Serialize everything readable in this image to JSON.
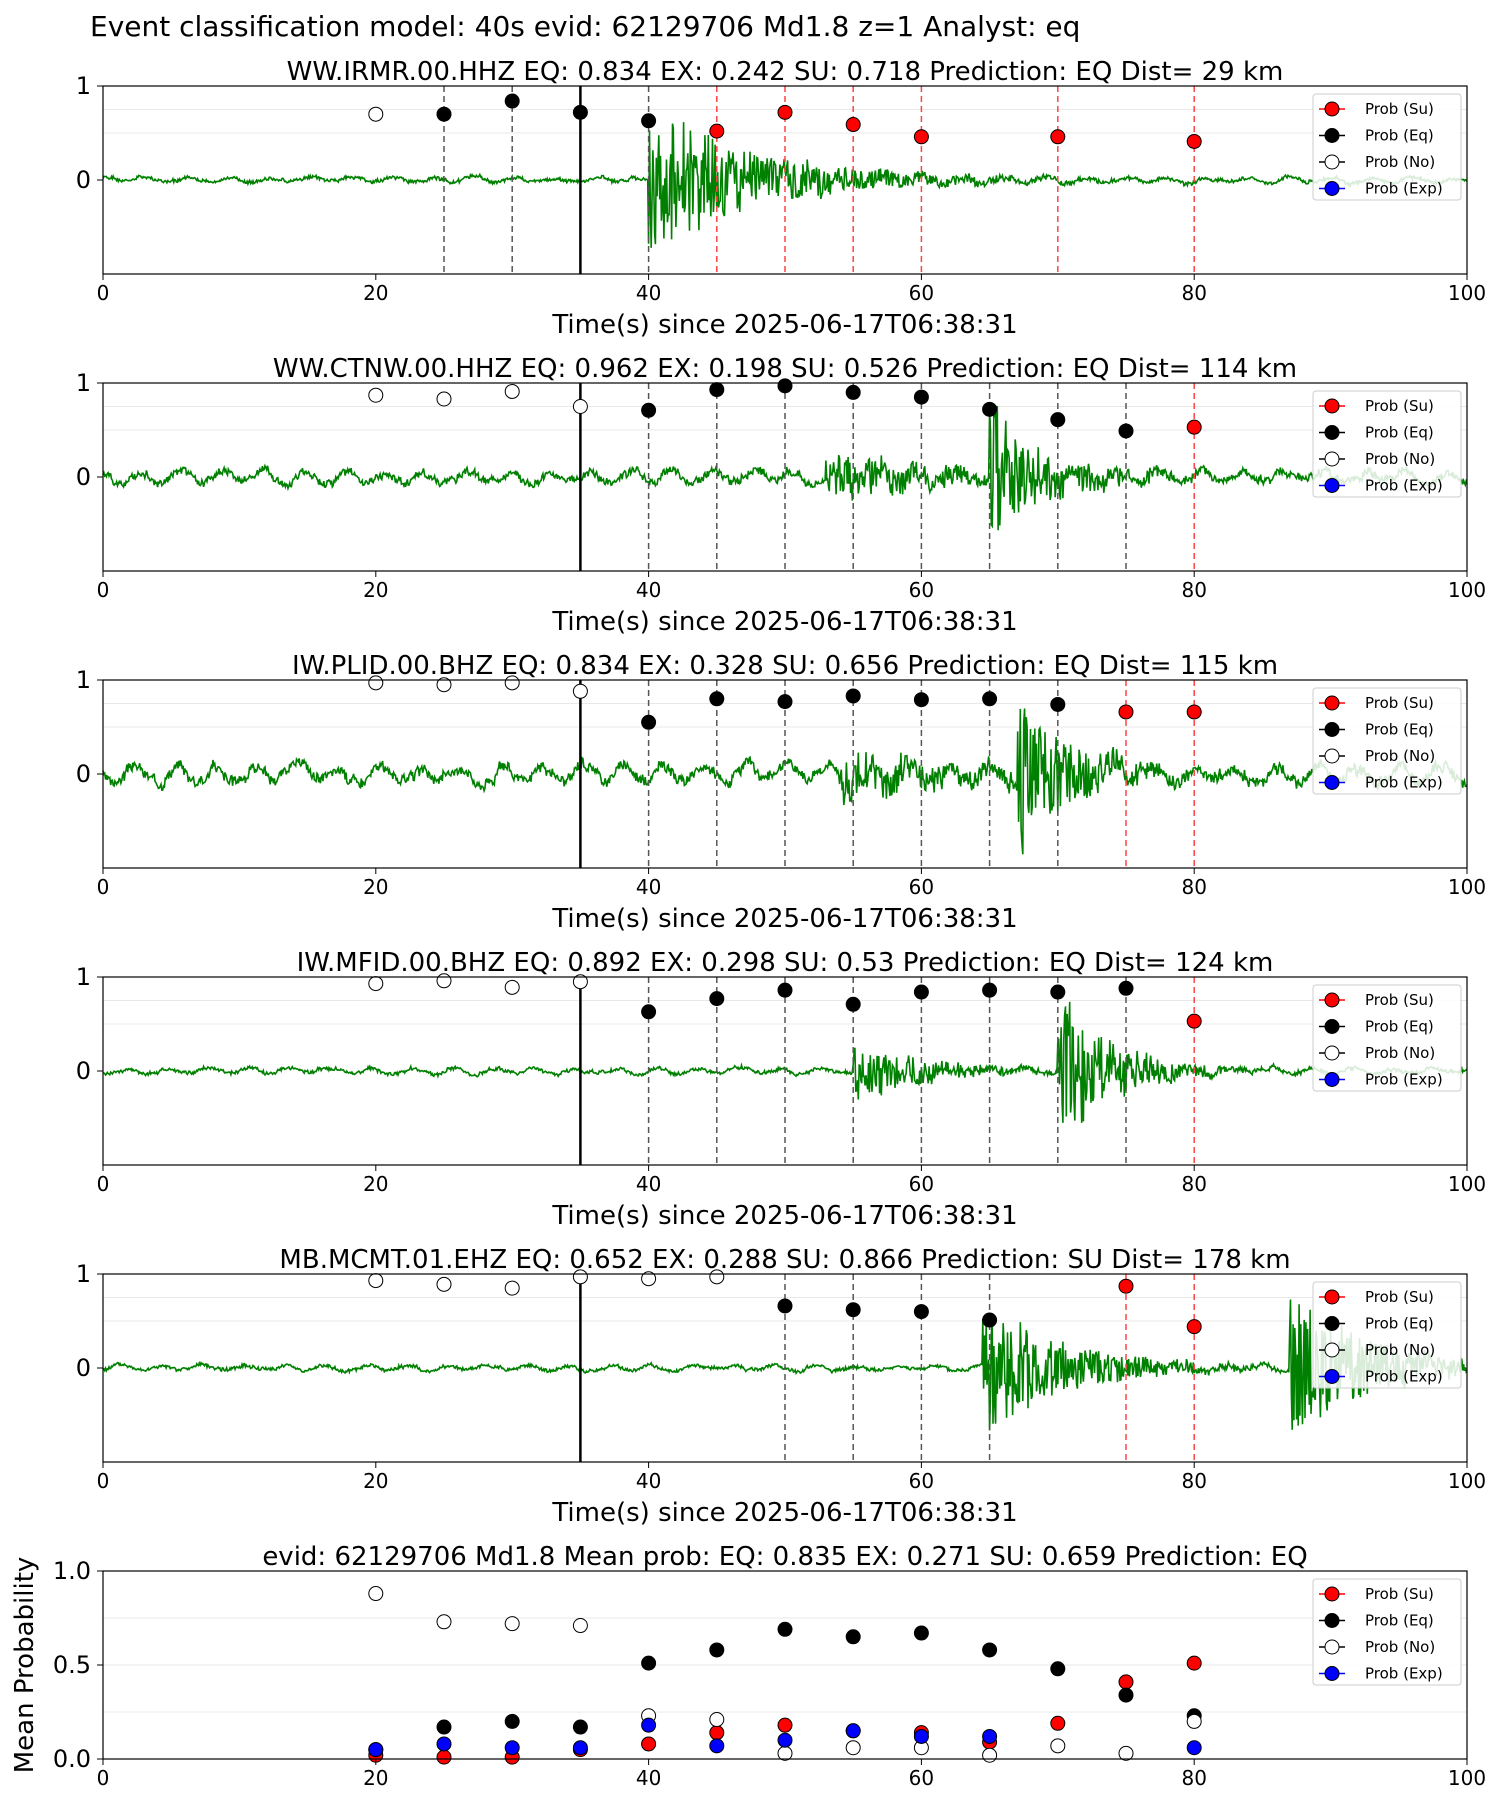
{
  "figure": {
    "suptitle": "Event classification model: 40s evid: 62129706 Md1.8 z=1 Analyst: eq"
  },
  "legend_labels": [
    "Prob (Su)",
    "Prob (Eq)",
    "Prob (No)",
    "Prob (Exp)"
  ],
  "colors": {
    "waveform": "#008000",
    "su": "#ff0000",
    "eq": "#000000",
    "no": "#ffffff",
    "exp": "#0000ff",
    "pick_line": "#000000",
    "eq_window_line": "#555555",
    "su_window_line": "#ff4444"
  },
  "chart_data": [
    {
      "type": "scatter",
      "title": "WW.IRMR.00.HHZ   EQ: 0.834  EX: 0.242  SU: 0.718   Prediction: EQ    Dist= 29 km",
      "xlabel": "Time(s) since 2025-06-17T06:38:31",
      "ylabel": "",
      "xlim": [
        0,
        100
      ],
      "ylim": [
        -1,
        1
      ],
      "xticks": [
        "0",
        "20",
        "40",
        "60",
        "80",
        "100"
      ],
      "yticks": [
        "1",
        "0"
      ],
      "pick_time": 35,
      "waveform": {
        "onset": 40,
        "decay": 8,
        "amp": 0.82,
        "base": 0.04,
        "second_onset": null,
        "seed": 1
      },
      "eq_windows": [
        25,
        30,
        40
      ],
      "su_windows": [
        45,
        50,
        55,
        60,
        70,
        80
      ],
      "points": [
        {
          "x": 20,
          "y": 0.7,
          "cls": "no"
        },
        {
          "x": 25,
          "y": 0.7,
          "cls": "eq"
        },
        {
          "x": 30,
          "y": 0.84,
          "cls": "eq"
        },
        {
          "x": 35,
          "y": 0.72,
          "cls": "eq"
        },
        {
          "x": 40,
          "y": 0.63,
          "cls": "eq"
        },
        {
          "x": 45,
          "y": 0.52,
          "cls": "su"
        },
        {
          "x": 50,
          "y": 0.72,
          "cls": "su"
        },
        {
          "x": 55,
          "y": 0.59,
          "cls": "su"
        },
        {
          "x": 60,
          "y": 0.46,
          "cls": "su"
        },
        {
          "x": 70,
          "y": 0.46,
          "cls": "su"
        },
        {
          "x": 80,
          "y": 0.41,
          "cls": "su"
        }
      ]
    },
    {
      "type": "scatter",
      "title": "WW.CTNW.00.HHZ   EQ: 0.962  EX: 0.198  SU: 0.526   Prediction: EQ    Dist= 114 km",
      "xlabel": "Time(s) since 2025-06-17T06:38:31",
      "ylabel": "",
      "xlim": [
        0,
        100
      ],
      "ylim": [
        -1,
        1
      ],
      "xticks": [
        "0",
        "20",
        "40",
        "60",
        "80",
        "100"
      ],
      "yticks": [
        "1",
        "0"
      ],
      "pick_time": 35,
      "waveform": {
        "onset": 53,
        "decay": 10,
        "amp": 0.25,
        "base": 0.09,
        "second_onset": 65,
        "second_amp": 0.75,
        "second_decay": 4,
        "seed": 2
      },
      "eq_windows": [
        40,
        45,
        50,
        55,
        60,
        65,
        70,
        75
      ],
      "su_windows": [
        80
      ],
      "points": [
        {
          "x": 20,
          "y": 0.87,
          "cls": "no"
        },
        {
          "x": 25,
          "y": 0.83,
          "cls": "no"
        },
        {
          "x": 30,
          "y": 0.91,
          "cls": "no"
        },
        {
          "x": 35,
          "y": 0.75,
          "cls": "no"
        },
        {
          "x": 40,
          "y": 0.71,
          "cls": "eq"
        },
        {
          "x": 45,
          "y": 0.93,
          "cls": "eq"
        },
        {
          "x": 50,
          "y": 0.97,
          "cls": "eq"
        },
        {
          "x": 55,
          "y": 0.9,
          "cls": "eq"
        },
        {
          "x": 60,
          "y": 0.85,
          "cls": "eq"
        },
        {
          "x": 65,
          "y": 0.72,
          "cls": "eq"
        },
        {
          "x": 70,
          "y": 0.61,
          "cls": "eq"
        },
        {
          "x": 75,
          "y": 0.49,
          "cls": "eq"
        },
        {
          "x": 80,
          "y": 0.53,
          "cls": "su"
        }
      ]
    },
    {
      "type": "scatter",
      "title": "IW.PLID.00.BHZ   EQ: 0.834  EX: 0.328  SU: 0.656   Prediction: EQ    Dist= 115 km",
      "xlabel": "Time(s) since 2025-06-17T06:38:31",
      "ylabel": "",
      "xlim": [
        0,
        100
      ],
      "ylim": [
        -1,
        1
      ],
      "xticks": [
        "0",
        "20",
        "40",
        "60",
        "80",
        "100"
      ],
      "yticks": [
        "1",
        "0"
      ],
      "pick_time": 35,
      "waveform": {
        "onset": 54,
        "decay": 10,
        "amp": 0.25,
        "base": 0.12,
        "second_onset": 67,
        "second_amp": 0.8,
        "second_decay": 4,
        "seed": 3
      },
      "eq_windows": [
        40,
        45,
        50,
        55,
        60,
        65,
        70
      ],
      "su_windows": [
        75,
        80
      ],
      "points": [
        {
          "x": 20,
          "y": 0.97,
          "cls": "no"
        },
        {
          "x": 25,
          "y": 0.95,
          "cls": "no"
        },
        {
          "x": 30,
          "y": 0.97,
          "cls": "no"
        },
        {
          "x": 35,
          "y": 0.88,
          "cls": "no"
        },
        {
          "x": 40,
          "y": 0.55,
          "cls": "eq"
        },
        {
          "x": 45,
          "y": 0.8,
          "cls": "eq"
        },
        {
          "x": 50,
          "y": 0.77,
          "cls": "eq"
        },
        {
          "x": 55,
          "y": 0.83,
          "cls": "eq"
        },
        {
          "x": 60,
          "y": 0.79,
          "cls": "eq"
        },
        {
          "x": 65,
          "y": 0.8,
          "cls": "eq"
        },
        {
          "x": 70,
          "y": 0.74,
          "cls": "eq"
        },
        {
          "x": 75,
          "y": 0.66,
          "cls": "su"
        },
        {
          "x": 80,
          "y": 0.66,
          "cls": "su"
        }
      ]
    },
    {
      "type": "scatter",
      "title": "IW.MFID.00.BHZ   EQ: 0.892  EX: 0.298  SU: 0.53   Prediction: EQ    Dist= 124 km",
      "xlabel": "Time(s) since 2025-06-17T06:38:31",
      "ylabel": "",
      "xlim": [
        0,
        100
      ],
      "ylim": [
        -1,
        1
      ],
      "xticks": [
        "0",
        "20",
        "40",
        "60",
        "80",
        "100"
      ],
      "yticks": [
        "1",
        "0"
      ],
      "pick_time": 35,
      "waveform": {
        "onset": 55,
        "decay": 5,
        "amp": 0.35,
        "base": 0.04,
        "second_onset": 70,
        "second_amp": 0.85,
        "second_decay": 4,
        "seed": 4
      },
      "eq_windows": [
        40,
        45,
        50,
        55,
        60,
        65,
        70,
        75
      ],
      "su_windows": [
        80
      ],
      "points": [
        {
          "x": 20,
          "y": 0.93,
          "cls": "no"
        },
        {
          "x": 25,
          "y": 0.96,
          "cls": "no"
        },
        {
          "x": 30,
          "y": 0.89,
          "cls": "no"
        },
        {
          "x": 35,
          "y": 0.95,
          "cls": "no"
        },
        {
          "x": 40,
          "y": 0.63,
          "cls": "eq"
        },
        {
          "x": 45,
          "y": 0.77,
          "cls": "eq"
        },
        {
          "x": 50,
          "y": 0.86,
          "cls": "eq"
        },
        {
          "x": 55,
          "y": 0.71,
          "cls": "eq"
        },
        {
          "x": 60,
          "y": 0.84,
          "cls": "eq"
        },
        {
          "x": 65,
          "y": 0.86,
          "cls": "eq"
        },
        {
          "x": 70,
          "y": 0.84,
          "cls": "eq"
        },
        {
          "x": 75,
          "y": 0.88,
          "cls": "eq"
        },
        {
          "x": 80,
          "y": 0.53,
          "cls": "su"
        }
      ]
    },
    {
      "type": "scatter",
      "title": "MB.MCMT.01.EHZ   EQ: 0.652  EX: 0.288  SU: 0.866   Prediction: SU    Dist= 178 km",
      "xlabel": "Time(s) since 2025-06-17T06:38:31",
      "ylabel": "",
      "xlim": [
        0,
        100
      ],
      "ylim": [
        -1,
        1
      ],
      "xticks": [
        "0",
        "20",
        "40",
        "60",
        "80",
        "100"
      ],
      "yticks": [
        "1",
        "0"
      ],
      "pick_time": 35,
      "waveform": {
        "onset": 64.5,
        "decay": 6,
        "amp": 0.75,
        "base": 0.04,
        "second_onset": 87,
        "second_amp": 0.8,
        "second_decay": 6,
        "seed": 5
      },
      "eq_windows": [
        50,
        55,
        60,
        65
      ],
      "su_windows": [
        75,
        80
      ],
      "points": [
        {
          "x": 20,
          "y": 0.93,
          "cls": "no"
        },
        {
          "x": 25,
          "y": 0.89,
          "cls": "no"
        },
        {
          "x": 30,
          "y": 0.85,
          "cls": "no"
        },
        {
          "x": 35,
          "y": 0.97,
          "cls": "no"
        },
        {
          "x": 40,
          "y": 0.95,
          "cls": "no"
        },
        {
          "x": 45,
          "y": 0.97,
          "cls": "no"
        },
        {
          "x": 50,
          "y": 0.66,
          "cls": "eq"
        },
        {
          "x": 55,
          "y": 0.62,
          "cls": "eq"
        },
        {
          "x": 60,
          "y": 0.6,
          "cls": "eq"
        },
        {
          "x": 65,
          "y": 0.51,
          "cls": "eq"
        },
        {
          "x": 75,
          "y": 0.87,
          "cls": "su"
        },
        {
          "x": 80,
          "y": 0.44,
          "cls": "su"
        }
      ]
    },
    {
      "type": "scatter",
      "title": "evid: 62129706  Md1.8   Mean prob:   EQ: 0.835  EX: 0.271  SU: 0.659   Prediction: EQ",
      "xlabel": "",
      "ylabel": "Mean Probability",
      "xlim": [
        0,
        100
      ],
      "ylim": [
        0,
        1
      ],
      "xticks": [
        "0",
        "20",
        "40",
        "60",
        "80",
        "100"
      ],
      "yticks": [
        "1.0",
        "0.5",
        "0.0"
      ],
      "series": [
        {
          "name": "Prob (Su)",
          "cls": "su",
          "x": [
            20,
            25,
            30,
            35,
            40,
            45,
            50,
            55,
            60,
            65,
            70,
            75,
            80
          ],
          "y": [
            0.02,
            0.01,
            0.01,
            0.05,
            0.08,
            0.14,
            0.18,
            0.15,
            0.14,
            0.09,
            0.19,
            0.41,
            0.51
          ]
        },
        {
          "name": "Prob (Eq)",
          "cls": "eq",
          "x": [
            20,
            25,
            30,
            35,
            40,
            45,
            50,
            55,
            60,
            65,
            70,
            75,
            80
          ],
          "y": [
            0.05,
            0.17,
            0.2,
            0.17,
            0.51,
            0.58,
            0.69,
            0.65,
            0.67,
            0.58,
            0.48,
            0.34,
            0.23
          ]
        },
        {
          "name": "Prob (No)",
          "cls": "no",
          "x": [
            20,
            25,
            30,
            35,
            40,
            45,
            50,
            55,
            60,
            65,
            70,
            75,
            80
          ],
          "y": [
            0.88,
            0.73,
            0.72,
            0.71,
            0.23,
            0.21,
            0.03,
            0.06,
            0.06,
            0.02,
            0.07,
            0.03,
            0.2
          ]
        },
        {
          "name": "Prob (Exp)",
          "cls": "exp",
          "x": [
            20,
            25,
            30,
            35,
            40,
            45,
            50,
            55,
            60,
            65,
            70,
            75,
            80
          ],
          "y": [
            0.05,
            0.08,
            0.06,
            0.06,
            0.18,
            0.07,
            0.1,
            0.15,
            0.12,
            0.12,
            null,
            null,
            0.06
          ]
        }
      ]
    }
  ]
}
